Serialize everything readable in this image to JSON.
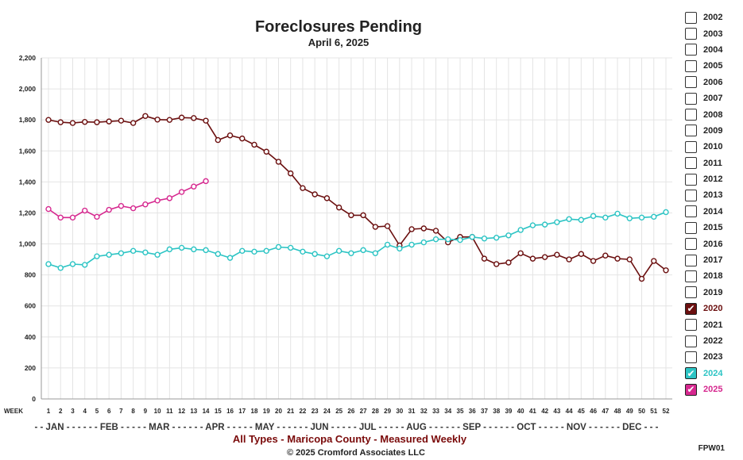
{
  "chart_data": {
    "type": "line",
    "title": "Foreclosures Pending",
    "subtitle": "April 6, 2025",
    "xlabel": "WEEK",
    "ylim": [
      0,
      2200
    ],
    "yticks": [
      0,
      200,
      400,
      600,
      800,
      1000,
      1200,
      1400,
      1600,
      1800,
      2000,
      2200
    ],
    "ytick_labels": [
      "0",
      "200",
      "400",
      "600",
      "800",
      "1,000",
      "1,200",
      "1,400",
      "1,600",
      "1,800",
      "2,000",
      "2,200"
    ],
    "weeks": [
      1,
      2,
      3,
      4,
      5,
      6,
      7,
      8,
      9,
      10,
      11,
      12,
      13,
      14,
      15,
      16,
      17,
      18,
      19,
      20,
      21,
      22,
      23,
      24,
      25,
      26,
      27,
      28,
      29,
      30,
      31,
      32,
      33,
      34,
      35,
      36,
      37,
      38,
      39,
      40,
      41,
      42,
      43,
      44,
      45,
      46,
      47,
      48,
      49,
      50,
      51,
      52
    ],
    "month_axis_label": "- - JAN - - - - - - FEB - - - - - MAR - - - - - - APR - - - - - MAY - - - - - - JUN - - - - - JUL - - - - - AUG - - - - - - SEP - - - - - - OCT - - - - - NOV - - - - - - DEC - - -",
    "grid": true,
    "series": [
      {
        "name": "2020",
        "color": "#6b0f0f",
        "values": [
          1800,
          1785,
          1780,
          1787,
          1785,
          1790,
          1795,
          1780,
          1825,
          1802,
          1800,
          1815,
          1812,
          1795,
          1670,
          1700,
          1680,
          1640,
          1595,
          1530,
          1455,
          1360,
          1320,
          1295,
          1235,
          1185,
          1185,
          1110,
          1115,
          990,
          1095,
          1100,
          1085,
          1010,
          1045,
          1045,
          905,
          870,
          880,
          940,
          905,
          915,
          930,
          900,
          935,
          890,
          925,
          905,
          900,
          775,
          890,
          830
        ]
      },
      {
        "name": "2024",
        "color": "#2cc4c4",
        "values": [
          870,
          845,
          870,
          865,
          920,
          930,
          940,
          955,
          945,
          930,
          965,
          975,
          965,
          960,
          935,
          910,
          955,
          950,
          955,
          980,
          975,
          950,
          935,
          920,
          955,
          940,
          960,
          940,
          995,
          970,
          995,
          1010,
          1030,
          1030,
          1025,
          1045,
          1035,
          1040,
          1055,
          1090,
          1120,
          1125,
          1140,
          1160,
          1155,
          1180,
          1170,
          1195,
          1165,
          1170,
          1175,
          1205
        ]
      },
      {
        "name": "2025",
        "color": "#d6288f",
        "values": [
          1225,
          1170,
          1170,
          1215,
          1175,
          1220,
          1245,
          1230,
          1255,
          1280,
          1295,
          1335,
          1370,
          1405
        ]
      }
    ],
    "legend": {
      "position": "right",
      "items": [
        {
          "label": "2002",
          "checked": false
        },
        {
          "label": "2003",
          "checked": false
        },
        {
          "label": "2004",
          "checked": false
        },
        {
          "label": "2005",
          "checked": false
        },
        {
          "label": "2006",
          "checked": false
        },
        {
          "label": "2007",
          "checked": false
        },
        {
          "label": "2008",
          "checked": false
        },
        {
          "label": "2009",
          "checked": false
        },
        {
          "label": "2010",
          "checked": false
        },
        {
          "label": "2011",
          "checked": false
        },
        {
          "label": "2012",
          "checked": false
        },
        {
          "label": "2013",
          "checked": false
        },
        {
          "label": "2014",
          "checked": false
        },
        {
          "label": "2015",
          "checked": false
        },
        {
          "label": "2016",
          "checked": false
        },
        {
          "label": "2017",
          "checked": false
        },
        {
          "label": "2018",
          "checked": false
        },
        {
          "label": "2019",
          "checked": false
        },
        {
          "label": "2020",
          "checked": true,
          "color": "#6b0f0f"
        },
        {
          "label": "2021",
          "checked": false
        },
        {
          "label": "2022",
          "checked": false
        },
        {
          "label": "2023",
          "checked": false
        },
        {
          "label": "2024",
          "checked": true,
          "color": "#2cc4c4"
        },
        {
          "label": "2025",
          "checked": true,
          "color": "#d6288f"
        }
      ]
    },
    "footer_line1": "All Types - Maricopa County - Measured Weekly",
    "footer_line2": "© 2025 Cromford Associates LLC",
    "code": "FPW01"
  }
}
